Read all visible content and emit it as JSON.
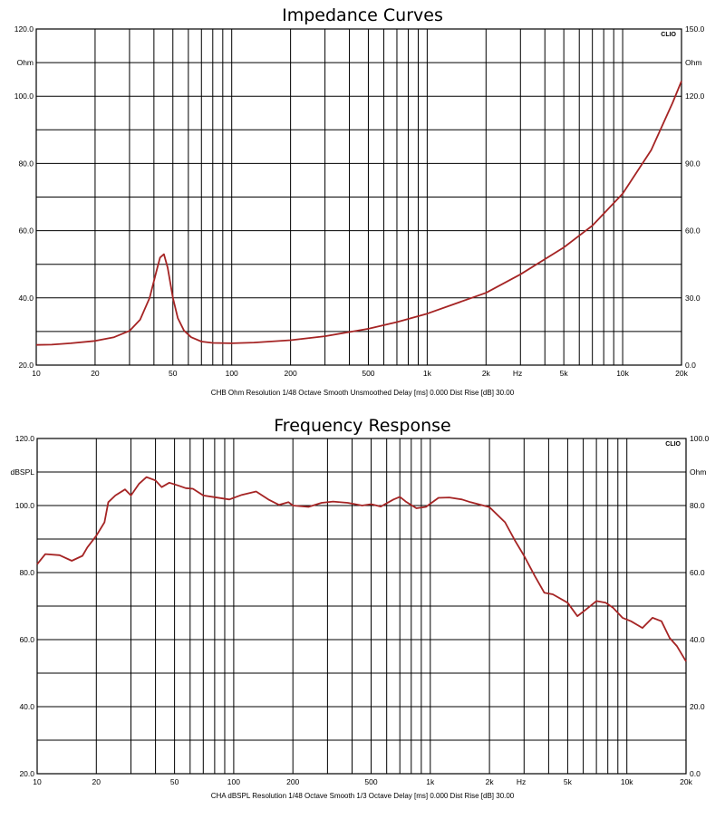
{
  "colors": {
    "curve": "#a52424",
    "grid": "#000000"
  },
  "chart_data": [
    {
      "type": "line",
      "title": "Impedance Curves",
      "caption": "CHB Ohm  Resolution 1/48 Octave  Smooth Unsmoothed  Delay [ms] 0.000  Dist Rise [dB] 30.00",
      "brand": "CLIO",
      "x_scale": "log",
      "xlim": [
        10,
        20000
      ],
      "ylim_left": [
        20,
        120
      ],
      "ylim_right": [
        0,
        150
      ],
      "grid": true,
      "left_ticks": [
        "20.0",
        "40.0",
        "60.0",
        "80.0",
        "100.0",
        "120.0"
      ],
      "left_unit": "Ohm",
      "right_ticks": [
        "0.0",
        "30.0",
        "60.0",
        "90.0",
        "120.0",
        "150.0"
      ],
      "right_unit": "Ohm",
      "x_ticks": [
        {
          "v": 10,
          "label": "10"
        },
        {
          "v": 20,
          "label": "20"
        },
        {
          "v": 50,
          "label": "50"
        },
        {
          "v": 100,
          "label": "100"
        },
        {
          "v": 200,
          "label": "200"
        },
        {
          "v": 500,
          "label": "500"
        },
        {
          "v": 1000,
          "label": "1k"
        },
        {
          "v": 2000,
          "label": "2k"
        },
        {
          "v": 5000,
          "label": "5k"
        },
        {
          "v": 10000,
          "label": "10k"
        },
        {
          "v": 20000,
          "label": "20k"
        }
      ],
      "x_unit": "Hz",
      "series": [
        {
          "x": [
            10,
            12,
            15,
            20,
            25,
            30,
            34,
            38,
            41,
            43,
            45,
            47,
            50,
            53,
            57,
            62,
            70,
            80,
            100,
            130,
            200,
            300,
            500,
            700,
            1000,
            2000,
            3000,
            5000,
            7000,
            10000,
            14000,
            18000,
            20000
          ],
          "y": [
            26,
            26.1,
            26.5,
            27.2,
            28.3,
            30.2,
            33.5,
            40,
            47.5,
            52,
            53,
            49,
            40,
            34,
            30.3,
            28.3,
            27,
            26.6,
            26.5,
            26.7,
            27.4,
            28.6,
            30.8,
            32.8,
            35.3,
            41.5,
            47,
            55,
            61.5,
            71,
            84,
            98,
            104.5
          ]
        }
      ]
    },
    {
      "type": "line",
      "title": "Frequency Response",
      "caption": "CHA dBSPL  Resolution 1/48 Octave  Smooth 1/3 Octave  Delay [ms] 0.000  Dist Rise [dB] 30.00",
      "brand": "CLIO",
      "x_scale": "log",
      "xlim": [
        10,
        20000
      ],
      "ylim_left": [
        20,
        120
      ],
      "ylim_right": [
        0,
        100
      ],
      "grid": true,
      "left_ticks": [
        "20.0",
        "40.0",
        "60.0",
        "80.0",
        "100.0",
        "120.0"
      ],
      "left_unit": "dBSPL",
      "right_ticks": [
        "0.0",
        "20.0",
        "40.0",
        "60.0",
        "80.0",
        "100.0"
      ],
      "right_unit": "Ohm",
      "x_ticks": [
        {
          "v": 10,
          "label": "10"
        },
        {
          "v": 20,
          "label": "20"
        },
        {
          "v": 50,
          "label": "50"
        },
        {
          "v": 100,
          "label": "100"
        },
        {
          "v": 200,
          "label": "200"
        },
        {
          "v": 500,
          "label": "500"
        },
        {
          "v": 1000,
          "label": "1k"
        },
        {
          "v": 2000,
          "label": "2k"
        },
        {
          "v": 5000,
          "label": "5k"
        },
        {
          "v": 10000,
          "label": "10k"
        },
        {
          "v": 20000,
          "label": "20k"
        }
      ],
      "x_unit": "Hz",
      "series": [
        {
          "x": [
            10,
            11,
            13,
            15,
            17,
            18,
            20,
            22,
            23,
            25,
            28,
            30,
            33,
            36,
            40,
            43,
            47,
            52,
            57,
            62,
            70,
            80,
            95,
            110,
            130,
            150,
            170,
            190,
            200,
            240,
            280,
            320,
            380,
            450,
            500,
            560,
            650,
            700,
            750,
            850,
            950,
            1100,
            1250,
            1450,
            1600,
            2000,
            2400,
            2700,
            3000,
            3400,
            3800,
            4200,
            5000,
            5600,
            6200,
            7000,
            7800,
            8500,
            9500,
            10500,
            12000,
            13500,
            15000,
            16500,
            18000,
            20000
          ],
          "y": [
            82.5,
            85.5,
            85.2,
            83.5,
            85,
            87.5,
            91,
            95,
            101,
            103,
            104.8,
            103,
            106.5,
            108.5,
            107.5,
            105.5,
            106.8,
            106,
            105.2,
            105,
            103,
            102.5,
            101.8,
            103.2,
            104.2,
            101.8,
            100.2,
            101,
            100,
            99.6,
            100.8,
            101.2,
            100.8,
            100,
            100.4,
            99.7,
            101.8,
            102.6,
            101.2,
            99.2,
            99.6,
            102.3,
            102.4,
            101.8,
            101,
            99.5,
            95,
            89.5,
            85,
            79,
            74,
            73.5,
            71,
            67,
            69,
            71.5,
            71,
            69.5,
            66.5,
            65.5,
            63.5,
            66.5,
            65.5,
            60.5,
            58,
            53.5
          ]
        }
      ]
    }
  ]
}
